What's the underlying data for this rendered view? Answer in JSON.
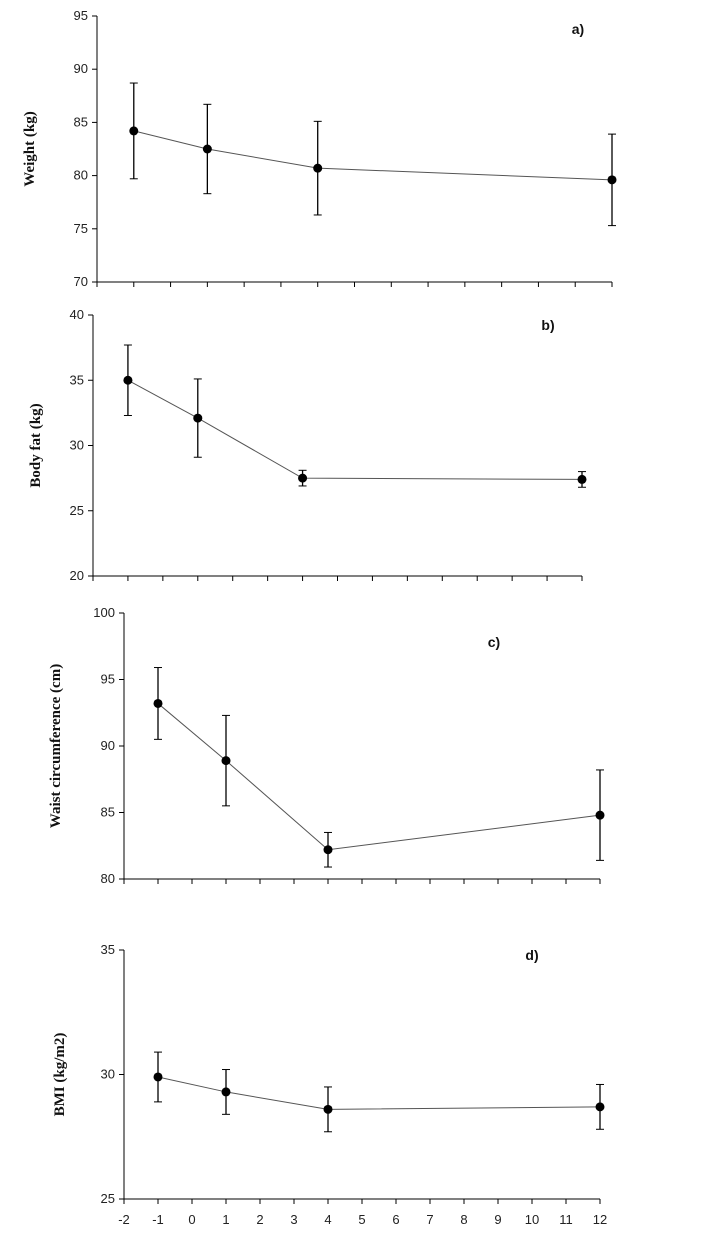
{
  "chart_data": [
    {
      "type": "line",
      "panel_label": "a)",
      "title": "",
      "xlabel": "",
      "ylabel": "Weight (kg)",
      "ylim": [
        70,
        95
      ],
      "yticks": [
        70,
        75,
        80,
        85,
        90,
        95
      ],
      "xlim": [
        -2,
        12
      ],
      "show_xtick_labels": false,
      "grid": false,
      "series": [
        {
          "x": [
            -1,
            1,
            4,
            12
          ],
          "values": [
            84.2,
            82.5,
            80.7,
            79.6
          ],
          "error": [
            4.5,
            4.2,
            4.4,
            4.3
          ]
        }
      ]
    },
    {
      "type": "line",
      "panel_label": "b)",
      "title": "",
      "xlabel": "",
      "ylabel": "Body fat (kg)",
      "ylim": [
        20,
        40
      ],
      "yticks": [
        20,
        25,
        30,
        35,
        40
      ],
      "xlim": [
        -2,
        12
      ],
      "show_xtick_labels": false,
      "grid": false,
      "series": [
        {
          "x": [
            -1,
            1,
            4,
            12
          ],
          "values": [
            35.0,
            32.1,
            27.5,
            27.4
          ],
          "error": [
            2.7,
            3.0,
            0.6,
            0.6
          ]
        }
      ]
    },
    {
      "type": "line",
      "panel_label": "c)",
      "title": "",
      "xlabel": "",
      "ylabel": "Waist circumference (cm)",
      "ylim": [
        80,
        100
      ],
      "yticks": [
        80,
        85,
        90,
        95,
        100
      ],
      "xlim": [
        -2,
        12
      ],
      "show_xtick_labels": false,
      "grid": false,
      "series": [
        {
          "x": [
            -1,
            1,
            4,
            12
          ],
          "values": [
            93.2,
            88.9,
            82.2,
            84.8
          ],
          "error": [
            2.7,
            3.4,
            1.3,
            3.4
          ]
        }
      ]
    },
    {
      "type": "line",
      "panel_label": "d)",
      "title": "",
      "xlabel": "",
      "ylabel": "BMI (kg/m2)",
      "ylim": [
        25,
        35
      ],
      "yticks": [
        25,
        30,
        35
      ],
      "xlim": [
        -2,
        12
      ],
      "xticks": [
        -2,
        -1,
        0,
        1,
        2,
        3,
        4,
        5,
        6,
        7,
        8,
        9,
        10,
        11,
        12
      ],
      "show_xtick_labels": true,
      "grid": false,
      "series": [
        {
          "x": [
            -1,
            1,
            4,
            12
          ],
          "values": [
            29.9,
            29.3,
            28.6,
            28.7
          ],
          "error": [
            1.0,
            0.9,
            0.9,
            0.9
          ]
        }
      ]
    }
  ]
}
